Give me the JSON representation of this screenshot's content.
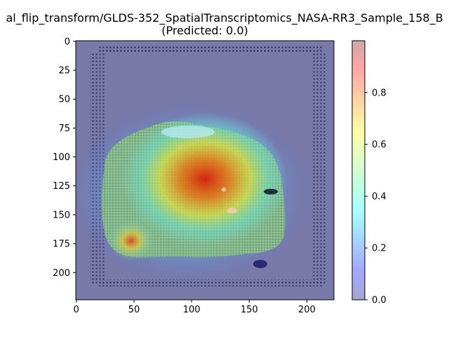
{
  "chart_data": {
    "type": "heatmap",
    "title": "al_flip_transform/GLDS-352_SpatialTranscriptomics_NASA-RR3_Sample_158_B",
    "subtitle": "(Predicted: 0.0)",
    "xlabel": "",
    "ylabel": "",
    "xlim": [
      -0.5,
      223.5
    ],
    "ylim": [
      223.5,
      -0.5
    ],
    "x_ticks": [
      0,
      50,
      100,
      150,
      200
    ],
    "y_ticks": [
      0,
      25,
      50,
      75,
      100,
      125,
      150,
      175,
      200
    ],
    "colorbar": {
      "colormap": "jet",
      "alpha": 0.35,
      "range": [
        0.0,
        1.0
      ],
      "ticks": [
        0.0,
        0.2,
        0.4,
        0.6,
        0.8
      ]
    },
    "background_image": "H&E-like tissue section overlaid with Grad-CAM heatmap",
    "hotspots": [
      {
        "x": 112,
        "y": 120,
        "value": 0.92
      },
      {
        "x": 48,
        "y": 172,
        "value": 0.85
      }
    ]
  }
}
